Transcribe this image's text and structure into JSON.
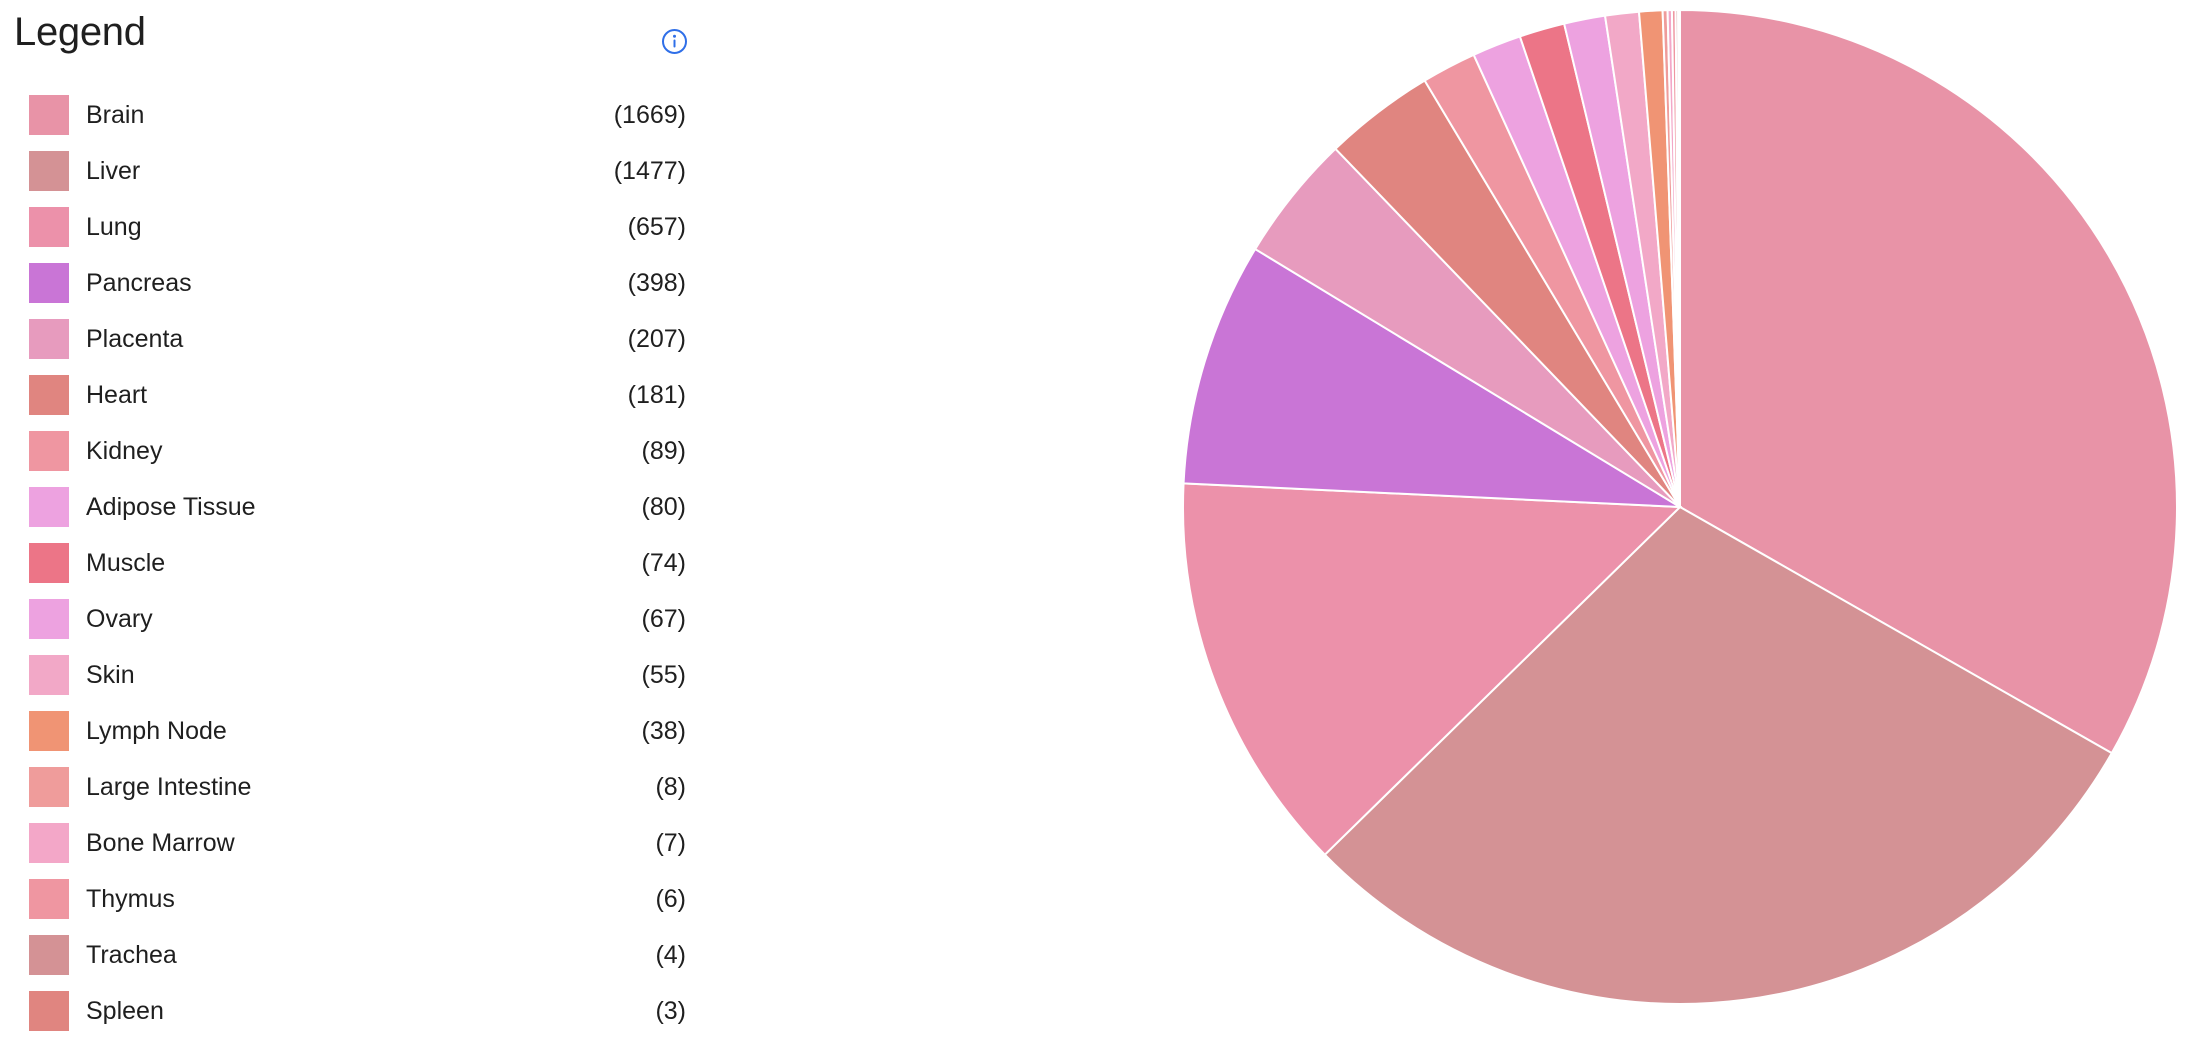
{
  "legend": {
    "title": "Legend",
    "info_icon": "info-circle-icon",
    "info_color": "#2f6fe8"
  },
  "chart_data": {
    "type": "pie",
    "title": "",
    "legend_position": "left",
    "start_angle_deg": 0,
    "direction": "clockwise",
    "categories": [
      "Brain",
      "Liver",
      "Lung",
      "Pancreas",
      "Placenta",
      "Heart",
      "Kidney",
      "Adipose Tissue",
      "Muscle",
      "Ovary",
      "Skin",
      "Lymph Node",
      "Large Intestine",
      "Bone Marrow",
      "Thymus",
      "Trachea",
      "Spleen"
    ],
    "values": [
      1669,
      1477,
      657,
      398,
      207,
      181,
      89,
      80,
      74,
      67,
      55,
      38,
      8,
      7,
      6,
      4,
      3
    ],
    "colors": [
      "#e893a7",
      "#d49295",
      "#ec91aa",
      "#c975d6",
      "#e79bbe",
      "#e08580",
      "#ef96a1",
      "#eda2e0",
      "#ec7587",
      "#eda2e0",
      "#f2a8c7",
      "#f09474",
      "#ef9c9b",
      "#f3a7c8",
      "#ef96a1",
      "#d49295",
      "#e08580"
    ]
  },
  "items": [
    {
      "label": "Brain",
      "count": "(1669)",
      "color": "#e893a7"
    },
    {
      "label": "Liver",
      "count": "(1477)",
      "color": "#d49295"
    },
    {
      "label": "Lung",
      "count": "(657)",
      "color": "#ec91aa"
    },
    {
      "label": "Pancreas",
      "count": "(398)",
      "color": "#c975d6"
    },
    {
      "label": "Placenta",
      "count": "(207)",
      "color": "#e79bbe"
    },
    {
      "label": "Heart",
      "count": "(181)",
      "color": "#e08580"
    },
    {
      "label": "Kidney",
      "count": "(89)",
      "color": "#ef96a1"
    },
    {
      "label": "Adipose Tissue",
      "count": "(80)",
      "color": "#eda2e0"
    },
    {
      "label": "Muscle",
      "count": "(74)",
      "color": "#ec7587"
    },
    {
      "label": "Ovary",
      "count": "(67)",
      "color": "#eda2e0"
    },
    {
      "label": "Skin",
      "count": "(55)",
      "color": "#f2a8c7"
    },
    {
      "label": "Lymph Node",
      "count": "(38)",
      "color": "#f09474"
    },
    {
      "label": "Large Intestine",
      "count": "(8)",
      "color": "#ef9c9b"
    },
    {
      "label": "Bone Marrow",
      "count": "(7)",
      "color": "#f3a7c8"
    },
    {
      "label": "Thymus",
      "count": "(6)",
      "color": "#ef96a1"
    },
    {
      "label": "Trachea",
      "count": "(4)",
      "color": "#d49295"
    },
    {
      "label": "Spleen",
      "count": "(3)",
      "color": "#e08580"
    }
  ]
}
